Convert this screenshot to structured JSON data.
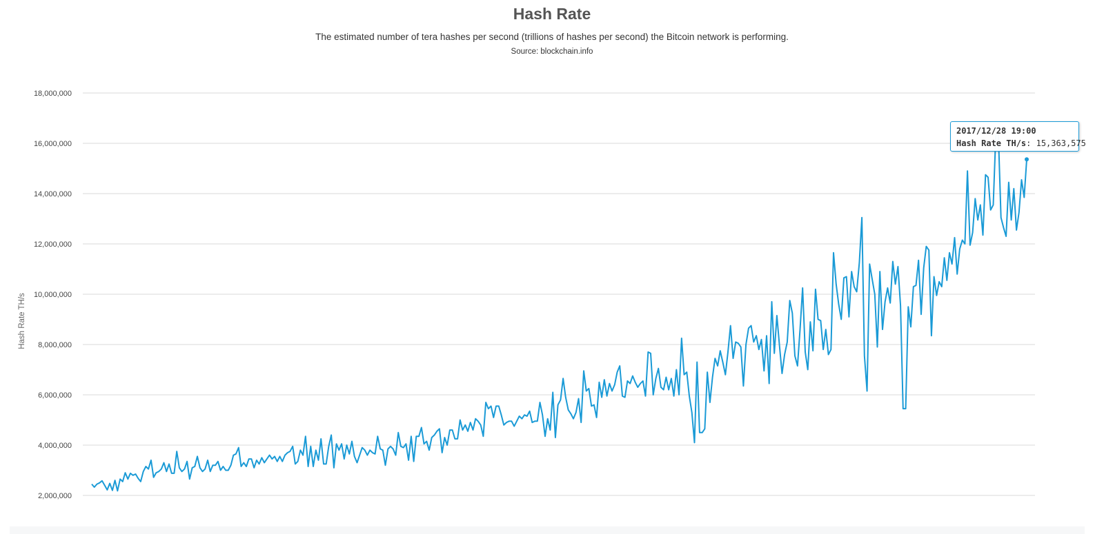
{
  "header": {
    "title": "Hash Rate",
    "subtitle": "The estimated number of tera hashes per second (trillions of hashes per second) the Bitcoin network is performing.",
    "source": "Source: blockchain.info"
  },
  "tooltip": {
    "date": "2017/12/28 19:00",
    "series_label": "Hash Rate TH/s",
    "value": "15,363,575"
  },
  "chart_data": {
    "type": "line",
    "title": "Hash Rate",
    "subtitle": "The estimated number of tera hashes per second (trillions of hashes per second) the Bitcoin network is performing.",
    "ylabel": "Hash Rate TH/s",
    "xlabel": "",
    "ylim": [
      2000000,
      18000000
    ],
    "yticks": [
      2000000,
      4000000,
      6000000,
      8000000,
      10000000,
      12000000,
      14000000,
      16000000,
      18000000
    ],
    "ytick_labels": [
      "2,000,000",
      "4,000,000",
      "6,000,000",
      "8,000,000",
      "10,000,000",
      "12,000,000",
      "14,000,000",
      "16,000,000",
      "18,000,000"
    ],
    "grid": true,
    "legend": "none",
    "color": "#1a9ad6",
    "last_point": {
      "label": "2017/12/28 19:00",
      "y": 15363575
    },
    "series": [
      {
        "values": [
          2450000,
          2330000,
          2450000,
          2500000,
          2580000,
          2400000,
          2220000,
          2480000,
          2200000,
          2600000,
          2180000,
          2650000,
          2550000,
          2900000,
          2650000,
          2880000,
          2800000,
          2850000,
          2680000,
          2550000,
          2950000,
          3150000,
          3050000,
          3400000,
          2720000,
          2900000,
          2950000,
          3050000,
          3300000,
          2950000,
          3250000,
          2880000,
          2880000,
          3750000,
          3100000,
          2950000,
          3050000,
          3350000,
          2650000,
          3100000,
          3150000,
          3550000,
          3100000,
          2950000,
          3050000,
          3400000,
          2950000,
          3200000,
          3200000,
          3350000,
          3000000,
          3150000,
          3000000,
          3000000,
          3200000,
          3600000,
          3650000,
          3900000,
          3150000,
          3300000,
          3150000,
          3450000,
          3450000,
          3100000,
          3400000,
          3250000,
          3500000,
          3300000,
          3450000,
          3600000,
          3450000,
          3550000,
          3350000,
          3550000,
          3350000,
          3600000,
          3700000,
          3750000,
          3950000,
          3250000,
          3350000,
          3800000,
          3600000,
          4350000,
          3150000,
          3950000,
          3150000,
          3800000,
          3400000,
          4250000,
          3250000,
          3250000,
          3950000,
          4400000,
          3100000,
          4050000,
          3800000,
          4050000,
          3450000,
          4000000,
          3650000,
          4150000,
          3550000,
          3300000,
          3600000,
          3900000,
          3800000,
          3600000,
          3800000,
          3700000,
          3650000,
          4350000,
          3850000,
          3800000,
          3200000,
          3850000,
          3950000,
          3850000,
          3600000,
          4500000,
          3950000,
          3900000,
          4050000,
          3400000,
          4350000,
          3350000,
          4350000,
          4350000,
          4700000,
          4050000,
          4150000,
          3800000,
          4300000,
          4400000,
          4550000,
          4650000,
          3700000,
          4300000,
          4000000,
          4600000,
          4600000,
          4250000,
          4250000,
          5000000,
          4600000,
          4800000,
          4550000,
          4900000,
          4600000,
          5050000,
          4950000,
          4800000,
          4350000,
          5700000,
          5450000,
          5550000,
          5100000,
          5550000,
          5550000,
          5200000,
          4800000,
          4900000,
          4950000,
          4950000,
          4750000,
          4950000,
          5150000,
          5050000,
          5200000,
          5150000,
          5350000,
          4900000,
          4950000,
          4950000,
          5700000,
          5200000,
          4350000,
          5050000,
          4600000,
          6100000,
          4300000,
          5600000,
          5800000,
          6650000,
          5900000,
          5400000,
          5250000,
          5050000,
          5300000,
          5850000,
          4900000,
          6950000,
          6150000,
          6250000,
          5550000,
          5600000,
          5100000,
          6500000,
          5900000,
          6600000,
          5950000,
          6450000,
          6150000,
          6400000,
          6900000,
          7150000,
          5950000,
          5900000,
          6550000,
          6450000,
          6750000,
          6500000,
          6300000,
          6450000,
          6550000,
          5950000,
          7700000,
          7650000,
          6000000,
          6650000,
          7050000,
          6300000,
          6200000,
          6700000,
          6200000,
          6650000,
          5950000,
          7000000,
          6000000,
          8250000,
          6800000,
          6900000,
          5950000,
          5300000,
          4100000,
          7300000,
          4500000,
          4500000,
          4650000,
          6900000,
          5700000,
          6700000,
          7450000,
          7150000,
          7750000,
          7300000,
          6800000,
          7700000,
          8750000,
          7450000,
          8100000,
          8050000,
          7900000,
          6350000,
          8000000,
          8650000,
          8750000,
          8100000,
          8350000,
          7800000,
          8200000,
          6950000,
          8350000,
          6450000,
          9700000,
          7650000,
          9150000,
          7950000,
          6850000,
          7600000,
          8100000,
          9750000,
          9250000,
          7550000,
          7150000,
          8600000,
          10250000,
          7700000,
          7000000,
          8900000,
          7750000,
          10200000,
          9000000,
          8950000,
          7800000,
          8600000,
          7600000,
          7800000,
          11650000,
          10400000,
          9600000,
          9000000,
          10650000,
          10700000,
          9100000,
          10900000,
          10300000,
          10100000,
          11250000,
          13050000,
          7550000,
          6150000,
          11200000,
          10600000,
          10000000,
          7900000,
          10900000,
          8600000,
          9700000,
          10250000,
          9650000,
          11300000,
          10400000,
          11100000,
          9550000,
          5450000,
          5450000,
          9500000,
          8700000,
          10300000,
          10350000,
          11350000,
          9200000,
          11050000,
          11900000,
          11750000,
          8350000,
          10700000,
          9950000,
          10500000,
          10300000,
          11450000,
          10550000,
          11650000,
          11200000,
          12250000,
          10800000,
          11800000,
          12150000,
          12000000,
          14900000,
          11950000,
          12450000,
          13800000,
          12950000,
          13550000,
          12350000,
          14750000,
          14650000,
          13350000,
          13550000,
          16350000,
          16350000,
          13050000,
          12650000,
          12300000,
          14450000,
          12950000,
          14200000,
          12550000,
          13250000,
          14550000,
          13850000,
          15363575
        ]
      }
    ]
  }
}
